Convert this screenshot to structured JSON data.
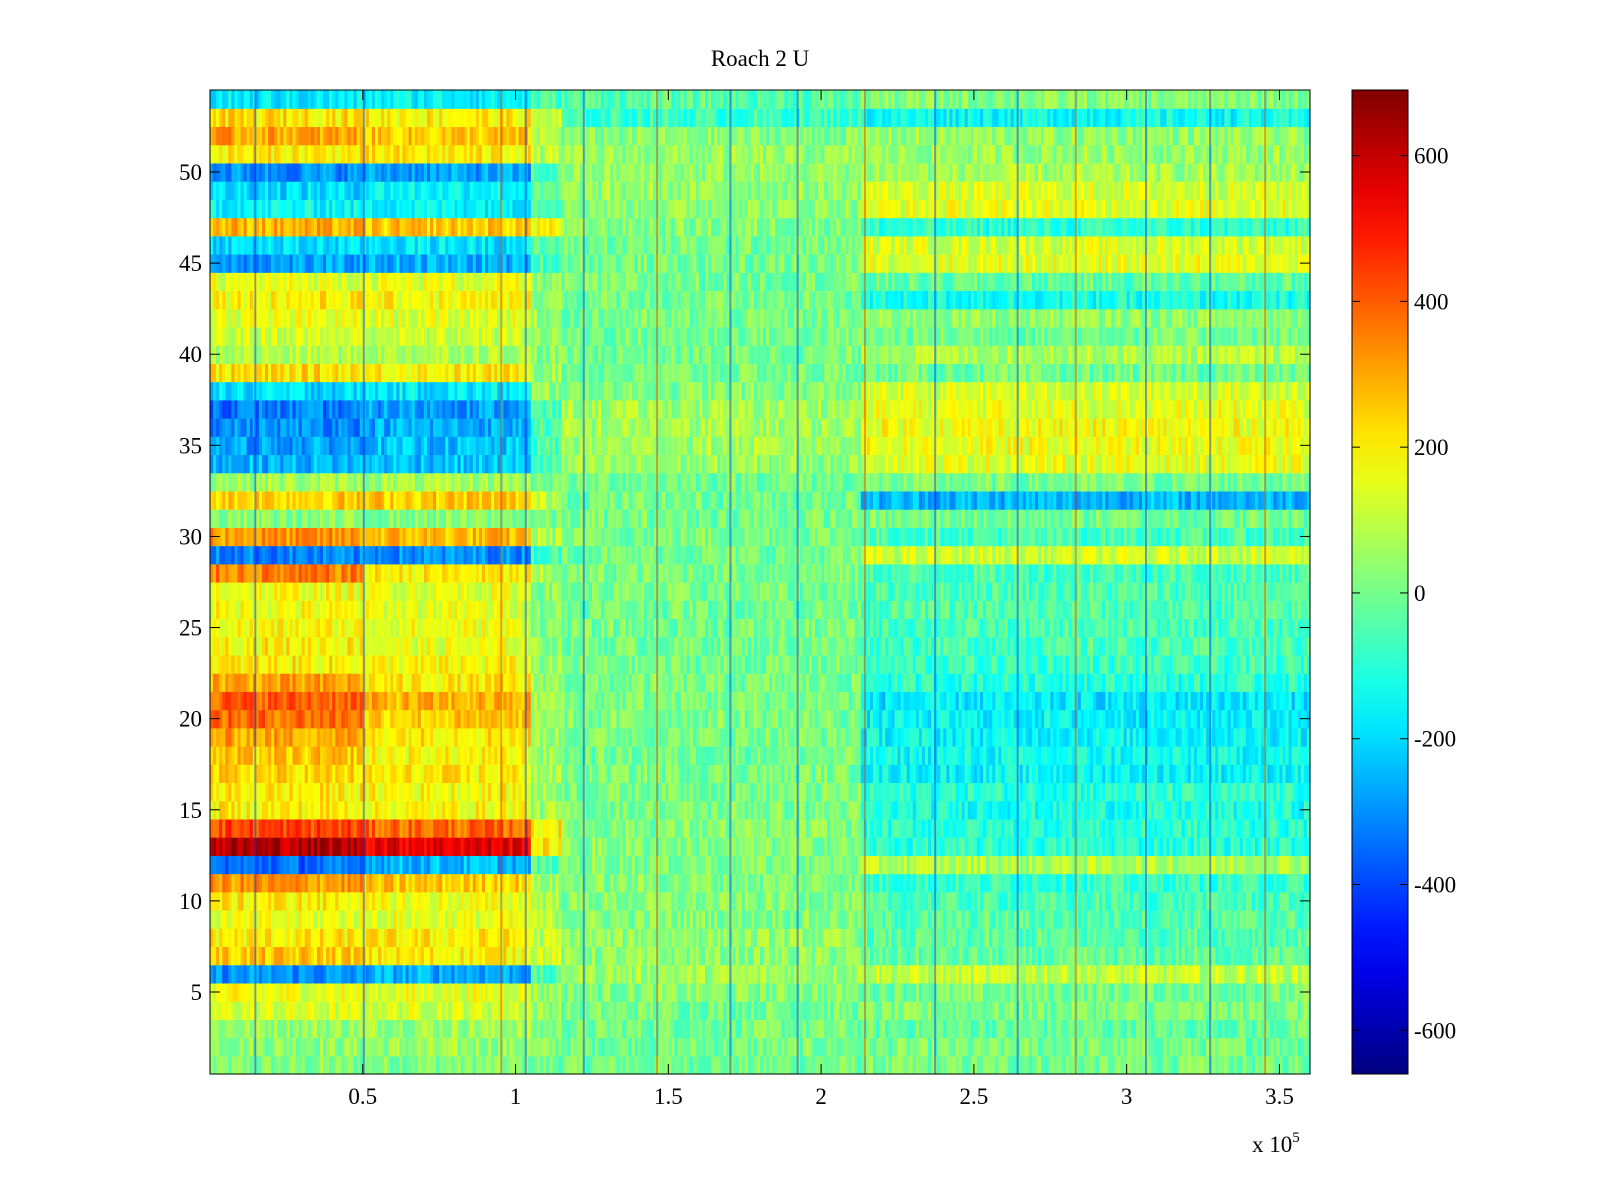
{
  "window": {
    "title": "Roach 2 U"
  },
  "chart_data": {
    "type": "heatmap",
    "title": "Roach 2 U",
    "xlabel": "",
    "ylabel": "",
    "x_exponent_label": "x 10",
    "x_exponent": "5",
    "x_scale": 100000,
    "xlim": [
      0,
      360000
    ],
    "ylim": [
      0.5,
      54.5
    ],
    "x_ticks": [
      0.5,
      1,
      1.5,
      2,
      2.5,
      3,
      3.5
    ],
    "y_ticks": [
      5,
      10,
      15,
      20,
      25,
      30,
      35,
      40,
      45,
      50
    ],
    "colorbar": {
      "colormap": "jet",
      "clim": [
        -660,
        690
      ],
      "ticks": [
        -600,
        -400,
        -200,
        0,
        200,
        400,
        600
      ]
    },
    "rows": 54,
    "segments_x": [
      0,
      50000,
      105000,
      115000,
      213000,
      360000
    ],
    "row_segment_means": [
      [
        10,
        20,
        0,
        0,
        0
      ],
      [
        40,
        40,
        20,
        0,
        0
      ],
      [
        50,
        60,
        20,
        0,
        -20
      ],
      [
        130,
        130,
        50,
        0,
        10
      ],
      [
        160,
        150,
        60,
        20,
        0
      ],
      [
        -300,
        -260,
        -80,
        60,
        100
      ],
      [
        250,
        200,
        120,
        30,
        -30
      ],
      [
        200,
        200,
        100,
        40,
        -40
      ],
      [
        150,
        150,
        80,
        20,
        -40
      ],
      [
        200,
        160,
        80,
        20,
        -60
      ],
      [
        320,
        250,
        60,
        20,
        -80
      ],
      [
        -350,
        -250,
        -50,
        20,
        80
      ],
      [
        620,
        560,
        200,
        20,
        -100
      ],
      [
        430,
        380,
        200,
        20,
        -100
      ],
      [
        200,
        180,
        60,
        10,
        -120
      ],
      [
        200,
        180,
        50,
        10,
        -100
      ],
      [
        230,
        200,
        60,
        10,
        -150
      ],
      [
        250,
        180,
        60,
        0,
        -140
      ],
      [
        300,
        220,
        60,
        10,
        -150
      ],
      [
        380,
        250,
        60,
        10,
        -160
      ],
      [
        400,
        280,
        60,
        10,
        -180
      ],
      [
        300,
        200,
        50,
        0,
        -100
      ],
      [
        200,
        180,
        40,
        0,
        -80
      ],
      [
        200,
        150,
        40,
        0,
        -60
      ],
      [
        180,
        160,
        30,
        0,
        -60
      ],
      [
        170,
        150,
        30,
        0,
        -50
      ],
      [
        170,
        150,
        30,
        0,
        -50
      ],
      [
        350,
        200,
        50,
        10,
        -60
      ],
      [
        -320,
        -300,
        -60,
        0,
        120
      ],
      [
        320,
        270,
        80,
        10,
        -60
      ],
      [
        20,
        20,
        0,
        0,
        0
      ],
      [
        250,
        250,
        100,
        0,
        -250
      ],
      [
        60,
        60,
        20,
        0,
        0
      ],
      [
        -250,
        -230,
        -60,
        40,
        150
      ],
      [
        -280,
        -240,
        -60,
        60,
        160
      ],
      [
        -300,
        -260,
        -60,
        60,
        170
      ],
      [
        -330,
        -280,
        -60,
        60,
        150
      ],
      [
        -200,
        -180,
        40,
        20,
        130
      ],
      [
        220,
        200,
        60,
        0,
        -10
      ],
      [
        80,
        80,
        20,
        0,
        80
      ],
      [
        120,
        110,
        40,
        0,
        0
      ],
      [
        150,
        140,
        40,
        0,
        40
      ],
      [
        200,
        180,
        60,
        0,
        -130
      ],
      [
        150,
        150,
        40,
        0,
        -30
      ],
      [
        -280,
        -260,
        -60,
        0,
        150
      ],
      [
        -200,
        -180,
        -40,
        0,
        130
      ],
      [
        280,
        250,
        200,
        20,
        -100
      ],
      [
        -150,
        -150,
        -20,
        40,
        150
      ],
      [
        -200,
        -150,
        -40,
        40,
        130
      ],
      [
        -300,
        -280,
        -60,
        40,
        60
      ],
      [
        200,
        200,
        100,
        40,
        50
      ],
      [
        300,
        250,
        80,
        20,
        40
      ],
      [
        220,
        200,
        100,
        -80,
        -140
      ],
      [
        -180,
        -160,
        -60,
        -40,
        20
      ]
    ],
    "dark_columns_x": [
      14500,
      50000,
      95000,
      103000,
      122000,
      146000,
      170000,
      192000,
      214000,
      237000,
      264000,
      283000,
      306000,
      327000,
      345000
    ]
  }
}
